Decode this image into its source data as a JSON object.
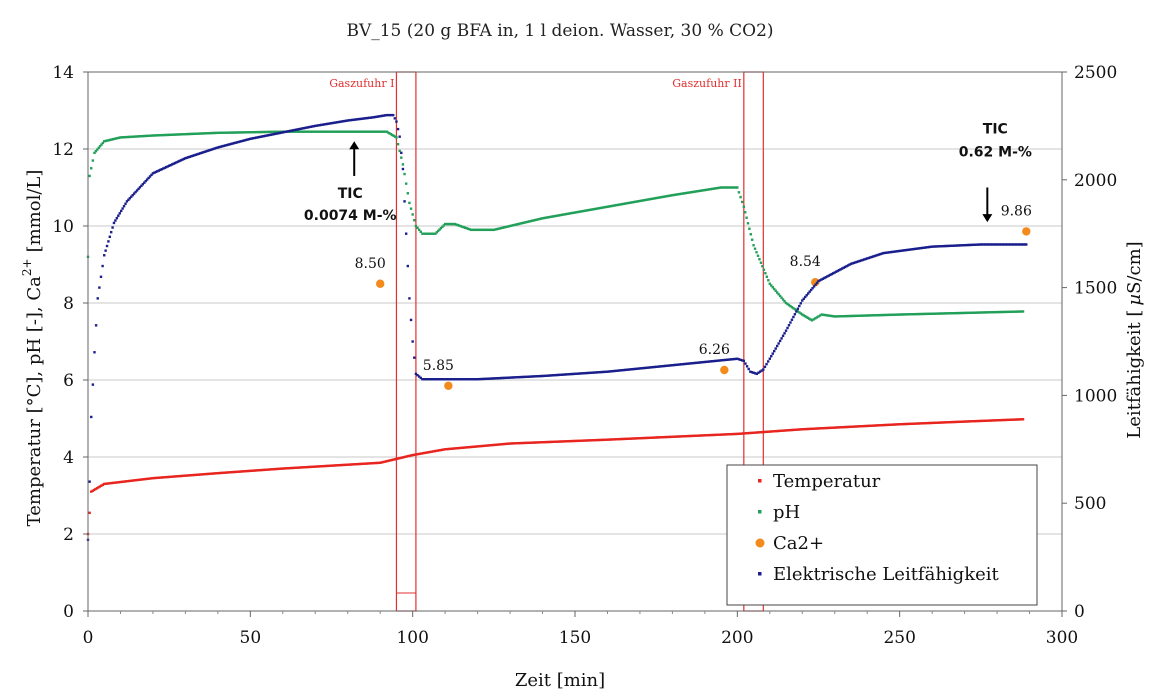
{
  "chart_data": {
    "type": "scatter",
    "title": "BV_15 (20 g BFA in, 1 l deion. Wasser, 30 % CO2)",
    "xlabel": "Zeit [min]",
    "ylabel_left_main": "Temperatur [°C], pH [-], Ca",
    "ylabel_left_sup": "2+",
    "ylabel_left_tail": "[mmol/L]",
    "ylabel_right_main": "Leitfähigkeit [",
    "ylabel_right_mu": "µ",
    "ylabel_right_unit": "S/cm]",
    "xlim": [
      0,
      300
    ],
    "ylim_left": [
      0,
      14
    ],
    "ylim_right": [
      0,
      2500
    ],
    "x_ticks": [
      "0",
      "50",
      "100",
      "150",
      "200",
      "250",
      "300"
    ],
    "y_left_ticks": [
      "0",
      "2",
      "4",
      "6",
      "8",
      "10",
      "12",
      "14"
    ],
    "y_right_ticks": [
      "0",
      "500",
      "1000",
      "1500",
      "2000",
      "2500"
    ],
    "grid": "horizontal",
    "legend": {
      "position": "bottom-right",
      "entries": [
        "Temperatur",
        "pH",
        "Ca2+",
        "Elektrische Leitfähigkeit"
      ]
    },
    "colors": {
      "temperatur": "#e8251f",
      "ph": "#22a05a",
      "ca": "#f28a1c",
      "leitfaehigkeit": "#1a1f8c",
      "gas_box": "#e03030"
    },
    "gas_regions": [
      {
        "label": "Gaszufuhr I",
        "x_start": 95,
        "x_end": 101
      },
      {
        "label": "Gaszufuhr II",
        "x_start": 202,
        "x_end": 208
      }
    ],
    "series": [
      {
        "name": "Temperatur",
        "axis": "left",
        "x": [
          0,
          1,
          5,
          20,
          40,
          60,
          80,
          90,
          95,
          100,
          110,
          130,
          160,
          200,
          220,
          250,
          270,
          288
        ],
        "y": [
          2.0,
          3.1,
          3.3,
          3.45,
          3.58,
          3.7,
          3.8,
          3.85,
          3.95,
          4.05,
          4.2,
          4.35,
          4.45,
          4.6,
          4.72,
          4.85,
          4.92,
          4.98
        ]
      },
      {
        "name": "pH",
        "axis": "left",
        "x": [
          0,
          0.5,
          2,
          5,
          10,
          20,
          40,
          60,
          80,
          92,
          95,
          97,
          99,
          101,
          103,
          107,
          110,
          113,
          118,
          125,
          140,
          160,
          180,
          195,
          200,
          202,
          205,
          210,
          215,
          220,
          223,
          224,
          226,
          230,
          250,
          288
        ],
        "y": [
          9.2,
          11.3,
          11.9,
          12.2,
          12.3,
          12.35,
          12.42,
          12.45,
          12.45,
          12.45,
          12.3,
          11.6,
          10.6,
          10.0,
          9.8,
          9.8,
          10.05,
          10.05,
          9.9,
          9.9,
          10.2,
          10.5,
          10.8,
          11.0,
          11.0,
          10.5,
          9.5,
          8.5,
          8.0,
          7.7,
          7.55,
          7.6,
          7.7,
          7.65,
          7.7,
          7.78
        ]
      },
      {
        "name": "Ca2+",
        "axis": "left",
        "x": [
          90,
          111,
          196,
          224,
          289
        ],
        "y": [
          8.5,
          5.85,
          6.26,
          8.54,
          9.86
        ],
        "labels": [
          "8.50",
          "5.85",
          "6.26",
          "8.54",
          "9.86"
        ]
      },
      {
        "name": "Elektrische Leitfähigkeit",
        "axis": "right",
        "x": [
          0,
          0.5,
          1,
          2,
          3,
          5,
          8,
          12,
          20,
          30,
          40,
          50,
          60,
          70,
          80,
          88,
          92,
          94,
          95,
          96,
          97,
          98,
          99,
          100,
          101,
          103,
          110,
          120,
          140,
          160,
          180,
          190,
          200,
          202,
          204,
          206,
          208,
          210,
          215,
          220,
          225,
          235,
          245,
          260,
          275,
          289
        ],
        "y": [
          330,
          600,
          900,
          1200,
          1450,
          1650,
          1800,
          1900,
          2030,
          2100,
          2150,
          2190,
          2220,
          2250,
          2275,
          2290,
          2300,
          2300,
          2270,
          2200,
          2050,
          1750,
          1450,
          1250,
          1100,
          1075,
          1075,
          1075,
          1090,
          1110,
          1140,
          1155,
          1170,
          1160,
          1110,
          1100,
          1120,
          1170,
          1300,
          1440,
          1530,
          1610,
          1660,
          1690,
          1700,
          1700
        ]
      }
    ],
    "annotations": [
      {
        "line1": "TIC",
        "line2": "0.0074 M-%",
        "x": 82,
        "y_left": 11.3,
        "arrow": "up"
      },
      {
        "line1": "TIC",
        "line2": "0.62 M-%",
        "x": 277,
        "y_left": 12.0,
        "arrow": "down"
      }
    ]
  }
}
